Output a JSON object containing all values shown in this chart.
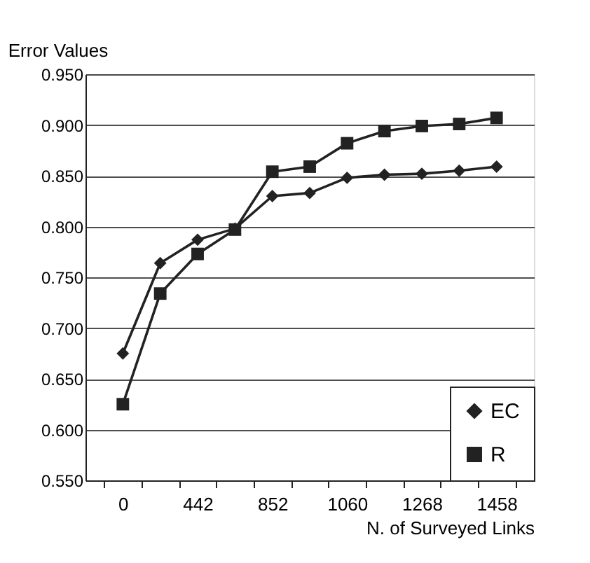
{
  "chart_data": {
    "type": "line",
    "xlabel": "N. of Surveyed Links",
    "ylabel": "Error Values",
    "categories": [
      "0",
      null,
      "442",
      null,
      "852",
      null,
      "1060",
      null,
      "1268",
      null,
      "1458"
    ],
    "series": [
      {
        "name": "EC",
        "color": "#222222",
        "marker": "diamond",
        "values": [
          0.675,
          0.764,
          0.787,
          0.798,
          0.83,
          0.833,
          0.848,
          0.851,
          0.852,
          0.855,
          0.859
        ]
      },
      {
        "name": "R",
        "color": "#222222",
        "marker": "square",
        "values": [
          0.625,
          0.734,
          0.773,
          0.797,
          0.854,
          0.859,
          0.882,
          0.894,
          0.899,
          0.901,
          0.907
        ]
      }
    ],
    "ylim": [
      0.55,
      0.95
    ],
    "yticks": [
      {
        "value": 0.55,
        "label": "0.550"
      },
      {
        "value": 0.6,
        "label": "0.600"
      },
      {
        "value": 0.65,
        "label": "0.650"
      },
      {
        "value": 0.7,
        "label": "0.700"
      },
      {
        "value": 0.75,
        "label": "0.750"
      },
      {
        "value": 0.8,
        "label": "0.800"
      },
      {
        "value": 0.85,
        "label": "0.850"
      },
      {
        "value": 0.9,
        "label": "0.900"
      },
      {
        "value": 0.95,
        "label": "0.950"
      }
    ],
    "grid": "y",
    "legend": "bottom right",
    "line_style": "solid"
  }
}
